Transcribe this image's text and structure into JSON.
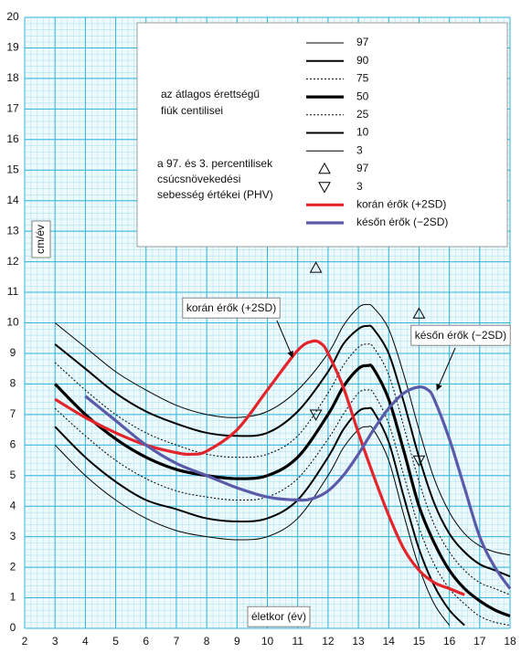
{
  "chart_data": {
    "type": "line",
    "x_label": "életkor (év)",
    "y_label": "cm/év",
    "xlim": [
      2,
      18
    ],
    "ylim": [
      0,
      20
    ],
    "xticks": [
      2,
      3,
      4,
      5,
      6,
      7,
      8,
      9,
      10,
      11,
      12,
      13,
      14,
      15,
      16,
      17,
      18
    ],
    "yticks": [
      0,
      1,
      2,
      3,
      4,
      5,
      6,
      7,
      8,
      9,
      10,
      11,
      12,
      13,
      14,
      15,
      16,
      17,
      18,
      19,
      20
    ],
    "grid": true,
    "legend_notes": [
      [
        "az átlagos érettségű",
        "fiúk centilisei"
      ],
      [
        "a 97. és 3. percentilisek",
        "csúcsnövekedési",
        "sebesség értékei (PHV)"
      ]
    ],
    "x": [
      3,
      4,
      5,
      6,
      7,
      8,
      9,
      10,
      11,
      12,
      12.5,
      13,
      13.3,
      13.5,
      14,
      14.5,
      15,
      15.5,
      16,
      16.5,
      17,
      17.5,
      18
    ],
    "series": [
      {
        "name": "97",
        "color": "#000000",
        "weight": "thin",
        "values": [
          10.0,
          9.2,
          8.4,
          7.8,
          7.3,
          7.0,
          6.9,
          7.1,
          7.8,
          9.0,
          9.9,
          10.5,
          10.6,
          10.5,
          9.8,
          8.3,
          6.5,
          4.9,
          3.8,
          3.1,
          2.7,
          2.5,
          2.4
        ]
      },
      {
        "name": "90",
        "color": "#000000",
        "weight": "medium",
        "values": [
          9.3,
          8.5,
          7.7,
          7.1,
          6.7,
          6.4,
          6.3,
          6.4,
          7.1,
          8.4,
          9.3,
          9.8,
          9.9,
          9.8,
          9.0,
          7.4,
          5.6,
          4.1,
          3.1,
          2.5,
          2.1,
          1.9,
          1.7
        ]
      },
      {
        "name": "75",
        "color": "#000000",
        "weight": "thin",
        "dash": "dotted",
        "values": [
          8.7,
          7.8,
          7.0,
          6.4,
          6.0,
          5.7,
          5.6,
          5.7,
          6.3,
          7.7,
          8.6,
          9.2,
          9.3,
          9.2,
          8.3,
          6.6,
          4.8,
          3.4,
          2.5,
          1.9,
          1.5,
          1.3,
          1.1
        ]
      },
      {
        "name": "50",
        "color": "#000000",
        "weight": "bold",
        "values": [
          8.0,
          7.0,
          6.2,
          5.6,
          5.2,
          5.0,
          4.9,
          5.0,
          5.6,
          7.0,
          7.9,
          8.5,
          8.6,
          8.5,
          7.5,
          5.8,
          4.0,
          2.8,
          1.9,
          1.3,
          0.9,
          0.6,
          0.4
        ]
      },
      {
        "name": "25",
        "color": "#000000",
        "weight": "thin",
        "dash": "dotted",
        "values": [
          7.2,
          6.3,
          5.5,
          4.9,
          4.5,
          4.3,
          4.2,
          4.3,
          4.9,
          6.2,
          7.0,
          7.7,
          7.8,
          7.7,
          6.7,
          5.0,
          3.3,
          2.1,
          1.3,
          0.8,
          0.4,
          0.2,
          0.1
        ]
      },
      {
        "name": "10",
        "color": "#000000",
        "weight": "medium",
        "values": [
          6.6,
          5.6,
          4.8,
          4.2,
          3.9,
          3.6,
          3.5,
          3.6,
          4.2,
          5.6,
          6.5,
          7.1,
          7.2,
          7.1,
          6.1,
          4.3,
          2.6,
          1.4,
          0.6,
          0.1,
          null,
          null,
          null
        ]
      },
      {
        "name": "3",
        "color": "#000000",
        "weight": "thin",
        "values": [
          6.0,
          5.0,
          4.2,
          3.6,
          3.2,
          3.0,
          2.9,
          3.0,
          3.6,
          5.0,
          5.9,
          6.5,
          6.6,
          6.5,
          5.5,
          3.7,
          2.0,
          0.8,
          0.1,
          null,
          null,
          null,
          null
        ]
      },
      {
        "name": "97",
        "color": "#000000",
        "marker": "triangle-up",
        "x": [
          11.6,
          15.0
        ],
        "values": [
          11.8,
          10.3
        ]
      },
      {
        "name": "3",
        "color": "#000000",
        "marker": "triangle-down",
        "x": [
          11.6,
          15.0
        ],
        "values": [
          7.0,
          5.5
        ]
      },
      {
        "name": "korán érők (+2SD)",
        "color": "#e3242b",
        "weight": "bold",
        "x": [
          3,
          4,
          5,
          6,
          7,
          7.5,
          8,
          9,
          10,
          11,
          11.5,
          11.8,
          12,
          12.5,
          13,
          13.5,
          14,
          14.5,
          15,
          15.5,
          16,
          16.5
        ],
        "values": [
          7.5,
          6.9,
          6.4,
          6.0,
          5.75,
          5.7,
          5.8,
          6.5,
          7.8,
          9.1,
          9.4,
          9.3,
          9.0,
          7.9,
          6.4,
          5.0,
          3.7,
          2.6,
          1.9,
          1.5,
          1.3,
          1.1
        ]
      },
      {
        "name": "későn érők (−2SD)",
        "color": "#5a5aa8",
        "weight": "bold",
        "x": [
          4,
          5,
          6,
          7,
          8,
          9,
          10,
          11,
          11.5,
          12,
          12.5,
          13,
          13.5,
          14,
          14.5,
          15,
          15.3,
          15.5,
          16,
          16.5,
          17,
          17.5,
          18
        ],
        "values": [
          7.6,
          6.8,
          6.0,
          5.4,
          5.0,
          4.6,
          4.3,
          4.2,
          4.25,
          4.5,
          5.0,
          5.7,
          6.5,
          7.2,
          7.7,
          7.9,
          7.8,
          7.5,
          6.2,
          4.6,
          3.0,
          2.0,
          1.3
        ]
      }
    ],
    "annotations": [
      {
        "text": "korán érők (+2SD)"
      },
      {
        "text": "későn érők (−2SD)"
      }
    ]
  }
}
